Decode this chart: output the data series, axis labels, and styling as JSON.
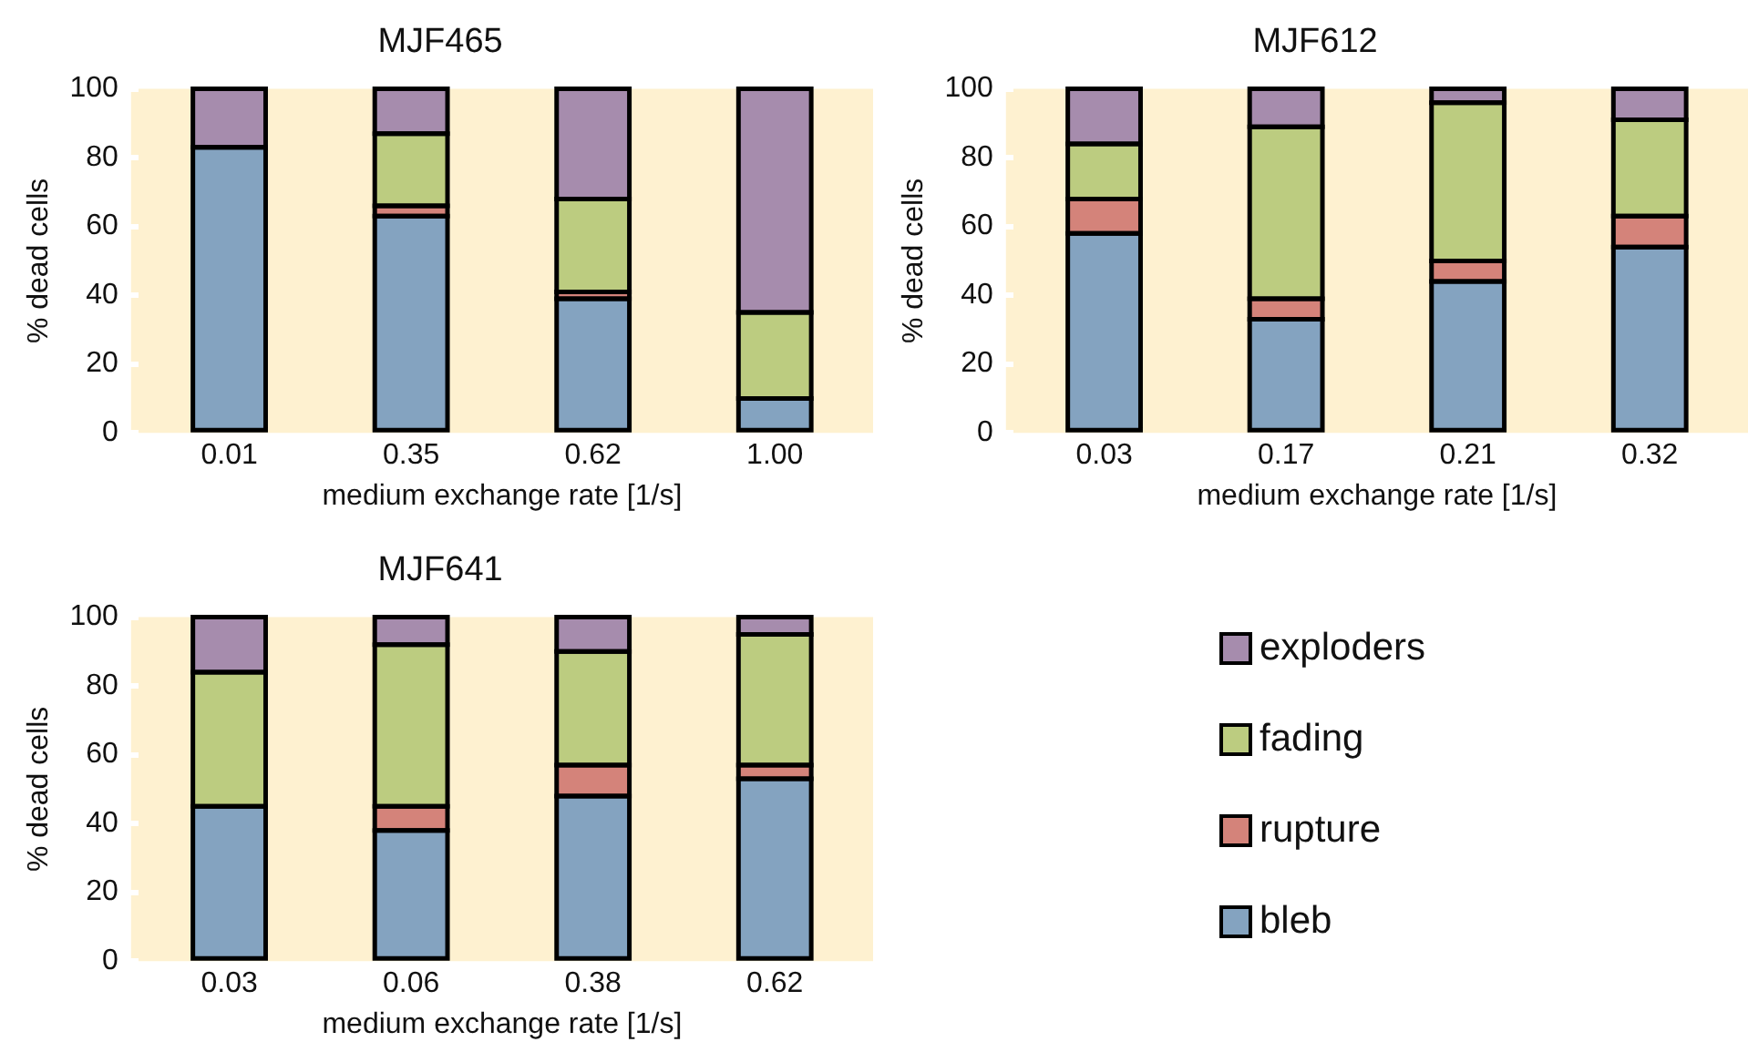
{
  "chart_data": [
    {
      "type": "bar",
      "title": "MJF465",
      "xlabel": "medium exchange rate [1/s]",
      "ylabel": "% dead cells",
      "categories": [
        "0.01",
        "0.35",
        "0.62",
        "1.00"
      ],
      "stacked": true,
      "ylim": [
        0,
        100
      ],
      "yticks": [
        0,
        20,
        40,
        60,
        80,
        100
      ],
      "grid": false,
      "legend": false,
      "series": [
        {
          "color": "#84a3c0",
          "values": [
            83,
            63,
            39,
            10
          ]
        },
        {
          "color": "#d4837a",
          "values": [
            0,
            3,
            2,
            0
          ]
        },
        {
          "color": "#bccc80",
          "values": [
            0,
            21,
            27,
            25
          ]
        },
        {
          "color": "#a68cad",
          "values": [
            17,
            13,
            32,
            65
          ]
        }
      ]
    },
    {
      "type": "bar",
      "title": "MJF612",
      "xlabel": "medium exchange rate [1/s]",
      "ylabel": "% dead cells",
      "categories": [
        "0.03",
        "0.17",
        "0.21",
        "0.32"
      ],
      "stacked": true,
      "ylim": [
        0,
        100
      ],
      "yticks": [
        0,
        20,
        40,
        60,
        80,
        100
      ],
      "grid": false,
      "legend": false,
      "series": [
        {
          "color": "#84a3c0",
          "values": [
            58,
            33,
            44,
            54
          ]
        },
        {
          "color": "#d4837a",
          "values": [
            10,
            6,
            6,
            9
          ]
        },
        {
          "color": "#bccc80",
          "values": [
            16,
            50,
            46,
            28
          ]
        },
        {
          "color": "#a68cad",
          "values": [
            16,
            11,
            4,
            9
          ]
        }
      ]
    },
    {
      "type": "bar",
      "title": "MJF641",
      "xlabel": "medium exchange rate [1/s]",
      "ylabel": "% dead cells",
      "categories": [
        "0.03",
        "0.06",
        "0.38",
        "0.62"
      ],
      "stacked": true,
      "ylim": [
        0,
        100
      ],
      "yticks": [
        0,
        20,
        40,
        60,
        80,
        100
      ],
      "grid": false,
      "legend": "right",
      "series": [
        {
          "name": "bleb",
          "color": "#84a3c0",
          "values": [
            45,
            38,
            48,
            53
          ]
        },
        {
          "name": "rupture",
          "color": "#d4837a",
          "values": [
            null,
            7,
            9,
            4
          ]
        },
        {
          "name": "fading",
          "color": "#bccc80",
          "values": [
            39,
            47,
            33,
            38
          ]
        },
        {
          "name": "exploders",
          "color": "#a68cad",
          "values": [
            16,
            8,
            10,
            5
          ]
        }
      ]
    }
  ]
}
